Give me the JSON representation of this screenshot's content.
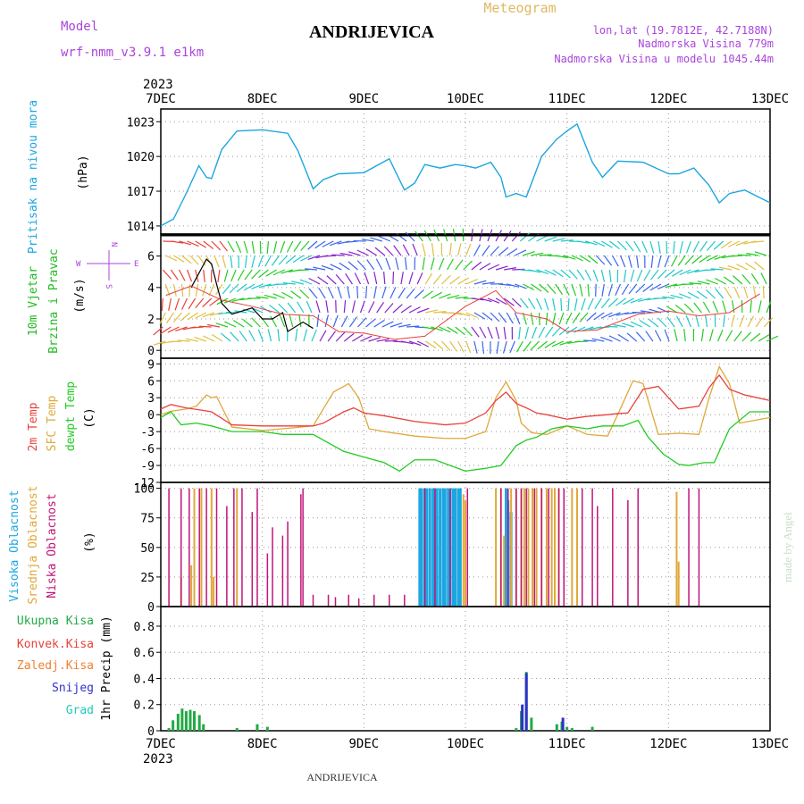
{
  "header": {
    "model_label": "Model",
    "model_name": "wrf-nmm_v3.9.1  e1km",
    "station": "ANDRIJEVICA",
    "product": "Meteogram",
    "lonlat": "lon,lat (19.7812E, 42.7188N)",
    "elevation": "Nadmorska Visina 779m",
    "model_elevation": "Nadmorska Visina u modelu 1045.44m",
    "footer_station": "ANDRIJEVICA",
    "watermark": "made by Angel"
  },
  "colors": {
    "pressure": "#1ca6e0",
    "temp2m": "#e8413a",
    "sfc": "#e0a83a",
    "dew": "#22cc22",
    "high_cloud": "#1ca6e0",
    "mid_cloud": "#e0a83a",
    "low_cloud": "#c0147a",
    "precip_total": "#22aa44",
    "convective": "#e8413a",
    "frozen": "#f08030",
    "snow": "#3030cc",
    "graupel": "#20c8b8",
    "label_wind": "#22bb22",
    "label_model": "#aa44dd",
    "label_meteogram": "#e0b860"
  },
  "chart_data": [
    {
      "type": "line",
      "panel": "pressure",
      "ylabel_colored": "Pritisak na nivou mora",
      "ylabel_unit": "(hPa)",
      "ylim": [
        1013.3,
        1024.1
      ],
      "yticks": [
        "1014",
        "1017",
        "1020",
        "1023"
      ],
      "ytick_values": [
        1014,
        1017,
        1020,
        1023
      ],
      "x_year": "2023",
      "x_ticks": [
        "7DEC",
        "8DEC",
        "9DEC",
        "10DEC",
        "11DEC",
        "12DEC",
        "13DEC"
      ],
      "x_days": [
        0,
        1,
        2,
        3,
        4,
        5,
        6
      ],
      "grid": true,
      "series": [
        {
          "x": [
            0,
            0.125,
            0.25,
            0.375,
            0.45,
            0.5,
            0.6,
            0.75,
            1.0,
            1.25,
            1.35,
            1.5,
            1.6,
            1.75,
            2.0,
            2.25,
            2.4,
            2.5,
            2.6,
            2.75,
            2.9,
            3.0,
            3.1,
            3.25,
            3.35,
            3.4,
            3.5,
            3.6,
            3.75,
            3.9,
            4.0,
            4.1,
            4.25,
            4.35,
            4.5,
            4.75,
            5.0,
            5.1,
            5.25,
            5.4,
            5.5,
            5.6,
            5.75,
            6.0
          ],
          "values": [
            1014.0,
            1014.6,
            1016.8,
            1019.2,
            1018.2,
            1018.1,
            1020.6,
            1022.2,
            1022.3,
            1022.0,
            1020.5,
            1017.2,
            1018.0,
            1018.5,
            1018.6,
            1019.8,
            1017.1,
            1017.7,
            1019.3,
            1019.0,
            1019.3,
            1019.2,
            1019.0,
            1019.5,
            1018.2,
            1016.5,
            1016.8,
            1016.5,
            1020.0,
            1021.5,
            1022.2,
            1022.8,
            1019.5,
            1018.2,
            1019.6,
            1019.5,
            1018.5,
            1018.5,
            1019.0,
            1017.5,
            1016.0,
            1016.8,
            1017.1,
            1016.0
          ]
        }
      ]
    },
    {
      "type": "line",
      "panel": "wind",
      "ylabel_colored": [
        "10m Vjetar",
        "Brzina i Pravac"
      ],
      "ylabel_unit": "(m/s)",
      "compass": [
        "N",
        "W",
        "E",
        "S"
      ],
      "ylim": [
        -0.5,
        7.4
      ],
      "yticks": [
        "0",
        "2",
        "4",
        "6"
      ],
      "ytick_values": [
        0,
        2,
        4,
        6
      ],
      "series": [
        {
          "name_role": "speed_black",
          "x": [
            0.3,
            0.45,
            0.5,
            0.55,
            0.6,
            0.7,
            0.9,
            1.0,
            1.1,
            1.2,
            1.25,
            1.4,
            1.5
          ],
          "values": [
            4.0,
            5.8,
            5.5,
            4.2,
            3.0,
            2.3,
            2.7,
            2.0,
            2.0,
            2.4,
            1.2,
            1.8,
            1.4
          ]
        },
        {
          "name_role": "gust_red",
          "x": [
            0.05,
            0.3,
            0.6,
            0.9,
            1.2,
            1.5,
            1.75,
            2.0,
            2.3,
            2.6,
            3.0,
            3.3,
            3.5,
            3.8,
            4.0,
            4.3,
            4.7,
            5.0,
            5.3,
            5.6,
            5.9
          ],
          "values": [
            3.5,
            4.1,
            3.2,
            2.8,
            2.3,
            2.2,
            1.2,
            1.1,
            0.7,
            0.9,
            2.8,
            3.8,
            2.4,
            2.0,
            1.2,
            1.3,
            2.3,
            2.5,
            2.2,
            2.4,
            3.6
          ]
        }
      ]
    },
    {
      "type": "line",
      "panel": "temperature",
      "ylabel_series": [
        "2m Temp",
        "SFC Temp",
        "dewpt Temp"
      ],
      "ylabel_unit": "(C)",
      "ylim": [
        -12,
        10
      ],
      "yticks": [
        "-12",
        "-9",
        "-6",
        "-3",
        "0",
        "3",
        "6",
        "9"
      ],
      "ytick_values": [
        -12,
        -9,
        -6,
        -3,
        0,
        3,
        6,
        9
      ],
      "series": [
        {
          "name": "2m Temp",
          "x": [
            0,
            0.1,
            0.25,
            0.4,
            0.5,
            0.7,
            1.0,
            1.2,
            1.5,
            1.6,
            1.8,
            1.9,
            2.0,
            2.2,
            2.5,
            2.8,
            3.0,
            3.2,
            3.3,
            3.4,
            3.5,
            3.6,
            3.7,
            3.8,
            4.0,
            4.2,
            4.4,
            4.5,
            4.6,
            4.75,
            4.9,
            5.1,
            5.3,
            5.4,
            5.5,
            5.6,
            5.75,
            6.0
          ],
          "values": [
            1.0,
            1.8,
            1.2,
            0.8,
            0.5,
            -1.8,
            -2.0,
            -2.0,
            -2.0,
            -1.5,
            0.5,
            1.2,
            0.3,
            -0.2,
            -1.2,
            -1.8,
            -1.5,
            0.3,
            2.5,
            4.0,
            2.0,
            1.2,
            0.3,
            0.0,
            -0.8,
            -0.3,
            0.0,
            0.2,
            0.3,
            4.5,
            5.0,
            1.0,
            1.5,
            4.8,
            7.0,
            4.5,
            3.5,
            2.5
          ]
        },
        {
          "name": "SFC Temp",
          "x": [
            0,
            0.1,
            0.25,
            0.35,
            0.45,
            0.5,
            0.55,
            0.7,
            1.0,
            1.2,
            1.5,
            1.7,
            1.85,
            1.95,
            2.05,
            2.2,
            2.5,
            2.8,
            3.0,
            3.2,
            3.3,
            3.4,
            3.5,
            3.55,
            3.65,
            3.8,
            4.0,
            4.2,
            4.4,
            4.5,
            4.65,
            4.75,
            4.9,
            5.1,
            5.3,
            5.4,
            5.5,
            5.6,
            5.7,
            6.0
          ],
          "values": [
            0.0,
            0.6,
            1.0,
            1.5,
            3.5,
            3.0,
            3.2,
            -2.2,
            -2.8,
            -2.5,
            -2.0,
            4.0,
            5.5,
            3.0,
            -2.5,
            -3.0,
            -3.8,
            -4.2,
            -4.2,
            -3.0,
            3.0,
            5.8,
            2.5,
            -1.5,
            -3.2,
            -3.5,
            -2.0,
            -3.5,
            -3.8,
            0.0,
            6.0,
            5.5,
            -3.5,
            -3.3,
            -3.5,
            3.0,
            8.5,
            5.5,
            -1.5,
            -0.5
          ]
        },
        {
          "name": "dewpt Temp",
          "x": [
            0,
            0.1,
            0.2,
            0.35,
            0.5,
            0.7,
            1.0,
            1.2,
            1.5,
            1.8,
            2.0,
            2.2,
            2.35,
            2.5,
            2.7,
            3.0,
            3.2,
            3.35,
            3.5,
            3.6,
            3.7,
            3.85,
            4.0,
            4.2,
            4.35,
            4.55,
            4.7,
            4.8,
            4.95,
            5.1,
            5.2,
            5.35,
            5.45,
            5.6,
            5.8,
            6.0
          ],
          "values": [
            -0.5,
            0.5,
            -1.8,
            -1.5,
            -2.0,
            -3.0,
            -3.0,
            -3.5,
            -3.5,
            -6.5,
            -7.5,
            -8.5,
            -10.0,
            -8.0,
            -8.0,
            -10.0,
            -9.5,
            -9.0,
            -5.5,
            -4.5,
            -4.0,
            -2.5,
            -2.0,
            -2.5,
            -2.0,
            -2.0,
            -1.0,
            -4.0,
            -7.0,
            -8.8,
            -9.0,
            -8.5,
            -8.5,
            -2.5,
            0.5,
            0.5
          ]
        }
      ]
    },
    {
      "type": "bar",
      "panel": "clouds",
      "ylabel_series": [
        "Visoka Oblacnost",
        "Srednja Oblacnost",
        "Niska Oblacnost"
      ],
      "ylabel_unit": "(%)",
      "ylim": [
        0,
        105
      ],
      "yticks": [
        "0",
        "25",
        "50",
        "75",
        "100"
      ],
      "ytick_values": [
        0,
        25,
        50,
        75,
        100
      ],
      "series": [
        {
          "name": "Visoka Oblacnost",
          "x": [
            2.55,
            2.57,
            2.6,
            2.62,
            2.65,
            2.68,
            2.7,
            2.72,
            2.75,
            2.78,
            2.8,
            2.83,
            2.85,
            2.88,
            2.9,
            2.93,
            2.95,
            3.4,
            3.42,
            3.45
          ],
          "values": [
            100,
            100,
            100,
            100,
            100,
            100,
            100,
            100,
            100,
            100,
            100,
            100,
            100,
            100,
            100,
            100,
            100,
            100,
            90,
            80
          ]
        },
        {
          "name": "Srednja Oblacnost",
          "x": [
            0.2,
            0.3,
            0.33,
            0.4,
            0.5,
            0.52,
            0.75,
            2.98,
            3.0,
            3.3,
            3.35,
            3.38,
            3.45,
            3.5,
            3.55,
            3.58,
            3.62,
            3.66,
            3.7,
            3.75,
            3.8,
            3.85,
            3.88,
            3.92,
            4.05,
            4.1,
            5.08,
            5.1
          ],
          "values": [
            25,
            35,
            100,
            100,
            100,
            25,
            100,
            95,
            90,
            100,
            100,
            60,
            100,
            100,
            100,
            100,
            100,
            100,
            100,
            100,
            100,
            100,
            100,
            100,
            100,
            100,
            97,
            38
          ]
        },
        {
          "name": "Niska Oblacnost",
          "x": [
            0.08,
            0.2,
            0.28,
            0.38,
            0.45,
            0.55,
            0.65,
            0.72,
            0.8,
            0.9,
            0.95,
            1.05,
            1.1,
            1.2,
            1.25,
            1.38,
            1.4,
            1.5,
            1.65,
            1.72,
            1.85,
            1.95,
            2.1,
            2.25,
            2.4,
            2.6,
            2.7,
            2.85,
            3.02,
            3.35,
            3.42,
            3.5,
            3.55,
            3.6,
            3.68,
            3.75,
            3.82,
            3.92,
            3.97,
            4.15,
            4.25,
            4.3,
            4.45,
            4.6,
            4.7,
            5.2,
            5.3
          ],
          "values": [
            100,
            100,
            100,
            100,
            100,
            100,
            85,
            100,
            100,
            80,
            100,
            45,
            67,
            60,
            72,
            95,
            100,
            10,
            10,
            8,
            10,
            7,
            10,
            10,
            10,
            100,
            100,
            100,
            100,
            100,
            100,
            100,
            100,
            100,
            100,
            100,
            100,
            100,
            100,
            100,
            100,
            85,
            100,
            90,
            100,
            100,
            100
          ]
        }
      ]
    },
    {
      "type": "bar",
      "panel": "precipitation",
      "legend": [
        "Ukupna Kisa",
        "Konvek.Kisa",
        "Zaledj.Kisa",
        "Snijeg",
        "Grad"
      ],
      "ylabel_unit": "1hr Precip (mm)",
      "ylim": [
        0,
        0.95
      ],
      "yticks": [
        "0",
        "0.2",
        "0.4",
        "0.6",
        "0.8"
      ],
      "ytick_values": [
        0,
        0.2,
        0.4,
        0.6,
        0.8
      ],
      "series": [
        {
          "name": "Ukupna Kisa",
          "x": [
            0.08,
            0.12,
            0.17,
            0.21,
            0.25,
            0.29,
            0.33,
            0.38,
            0.42,
            0.75,
            0.95,
            1.05,
            3.5,
            3.55,
            3.6,
            3.65,
            3.9,
            3.95,
            4.0,
            4.05,
            4.25
          ],
          "values": [
            0.02,
            0.08,
            0.13,
            0.17,
            0.15,
            0.16,
            0.15,
            0.12,
            0.05,
            0.02,
            0.05,
            0.03,
            0.02,
            0.15,
            0.45,
            0.1,
            0.05,
            0.07,
            0.03,
            0.02,
            0.03
          ]
        },
        {
          "name": "Snijeg",
          "x": [
            3.56,
            3.6,
            3.96
          ],
          "values": [
            0.2,
            0.44,
            0.1
          ]
        }
      ]
    }
  ]
}
